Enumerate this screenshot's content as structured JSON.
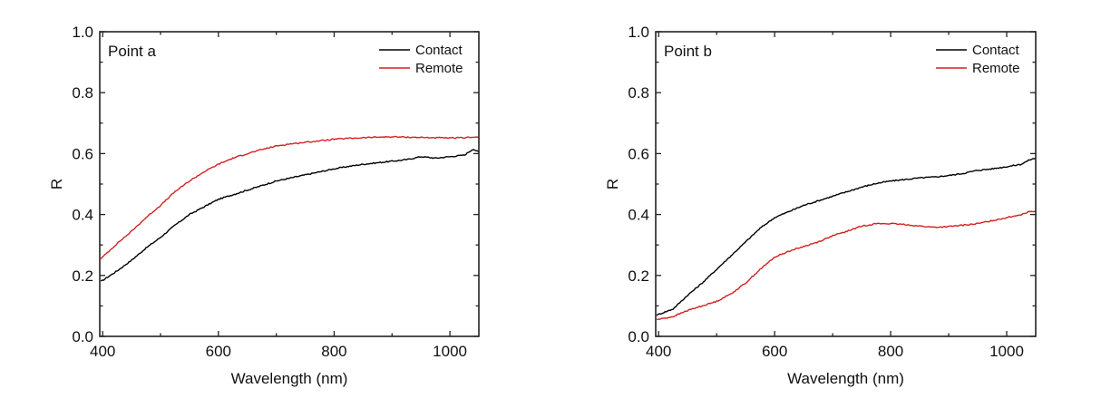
{
  "chart_data": [
    {
      "type": "line",
      "title": "",
      "panel_label": "Point a",
      "xlabel": "Wavelength (nm)",
      "ylabel": "R",
      "xlim": [
        395,
        1050
      ],
      "ylim": [
        0.0,
        1.0
      ],
      "xticks": [
        400,
        600,
        800,
        1000
      ],
      "xticks_minor": [
        500,
        700,
        900
      ],
      "yticks": [
        0.0,
        0.2,
        0.4,
        0.6,
        0.8,
        1.0
      ],
      "ytick_labels": [
        "0.0",
        "0.2",
        "0.4",
        "0.6",
        "0.8",
        "1.0"
      ],
      "yticks_minor": [
        0.1,
        0.3,
        0.5,
        0.7,
        0.9
      ],
      "grid": false,
      "legend_position": "upper right",
      "x": [
        397,
        425,
        450,
        475,
        500,
        525,
        550,
        575,
        600,
        625,
        650,
        675,
        700,
        725,
        750,
        775,
        800,
        825,
        850,
        875,
        900,
        925,
        950,
        975,
        1000,
        1025,
        1040,
        1050
      ],
      "series": [
        {
          "name": "Contact",
          "color": "#000000",
          "values": [
            0.18,
            0.215,
            0.25,
            0.29,
            0.325,
            0.365,
            0.4,
            0.425,
            0.45,
            0.465,
            0.48,
            0.495,
            0.51,
            0.52,
            0.53,
            0.54,
            0.55,
            0.558,
            0.565,
            0.57,
            0.575,
            0.58,
            0.59,
            0.585,
            0.59,
            0.595,
            0.615,
            0.605
          ]
        },
        {
          "name": "Remote",
          "color": "#d42020",
          "values": [
            0.255,
            0.305,
            0.345,
            0.39,
            0.43,
            0.475,
            0.51,
            0.54,
            0.565,
            0.585,
            0.6,
            0.613,
            0.625,
            0.632,
            0.637,
            0.642,
            0.647,
            0.65,
            0.652,
            0.654,
            0.655,
            0.654,
            0.653,
            0.652,
            0.651,
            0.652,
            0.655,
            0.653
          ]
        }
      ]
    },
    {
      "type": "line",
      "title": "",
      "panel_label": "Point b",
      "xlabel": "Wavelength (nm)",
      "ylabel": "R",
      "xlim": [
        395,
        1050
      ],
      "ylim": [
        0.0,
        1.0
      ],
      "xticks": [
        400,
        600,
        800,
        1000
      ],
      "xticks_minor": [
        500,
        700,
        900
      ],
      "yticks": [
        0.0,
        0.2,
        0.4,
        0.6,
        0.8,
        1.0
      ],
      "ytick_labels": [
        "0.0",
        "0.2",
        "0.4",
        "0.6",
        "0.8",
        "1.0"
      ],
      "yticks_minor": [
        0.1,
        0.3,
        0.5,
        0.7,
        0.9
      ],
      "grid": false,
      "legend_position": "upper right",
      "x": [
        397,
        425,
        450,
        475,
        500,
        525,
        550,
        575,
        600,
        625,
        650,
        675,
        700,
        725,
        750,
        775,
        800,
        825,
        850,
        875,
        900,
        925,
        950,
        975,
        1000,
        1025,
        1040,
        1050
      ],
      "series": [
        {
          "name": "Contact",
          "color": "#000000",
          "values": [
            0.07,
            0.09,
            0.135,
            0.175,
            0.22,
            0.265,
            0.31,
            0.355,
            0.39,
            0.41,
            0.43,
            0.445,
            0.46,
            0.475,
            0.49,
            0.502,
            0.51,
            0.515,
            0.52,
            0.523,
            0.528,
            0.535,
            0.545,
            0.55,
            0.557,
            0.565,
            0.58,
            0.585
          ]
        },
        {
          "name": "Remote",
          "color": "#d42020",
          "values": [
            0.055,
            0.065,
            0.085,
            0.1,
            0.115,
            0.14,
            0.175,
            0.22,
            0.26,
            0.28,
            0.295,
            0.31,
            0.33,
            0.345,
            0.362,
            0.37,
            0.37,
            0.367,
            0.362,
            0.358,
            0.36,
            0.365,
            0.37,
            0.38,
            0.39,
            0.4,
            0.41,
            0.412
          ]
        }
      ]
    }
  ]
}
